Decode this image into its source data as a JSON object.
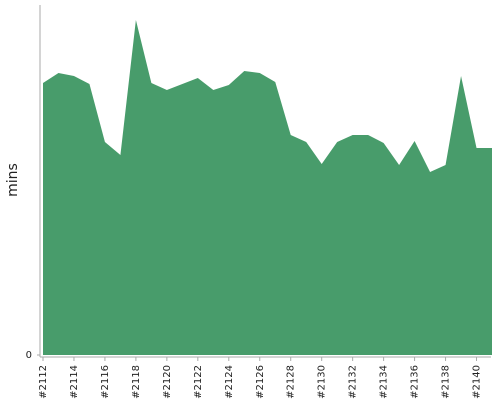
{
  "chart_data": {
    "type": "area",
    "y_label": "mins",
    "categories": [
      "#2112",
      null,
      "#2114",
      null,
      "#2116",
      null,
      "#2118",
      null,
      "#2120",
      null,
      "#2122",
      null,
      "#2124",
      null,
      "#2126",
      null,
      "#2128",
      null,
      "#2130",
      null,
      "#2132",
      null,
      "#2134",
      null,
      "#2136",
      null,
      "#2138",
      null,
      "#2140",
      null
    ],
    "values": [
      272,
      282,
      279,
      271,
      213,
      200,
      335,
      272,
      265,
      271,
      277,
      265,
      270,
      284,
      282,
      273,
      220,
      213,
      191,
      213,
      220,
      220,
      212,
      190,
      214,
      183,
      190,
      279,
      207,
      207
    ],
    "color": "#489c6b",
    "ylim": [
      0,
      350
    ],
    "yticks": [
      0
    ]
  }
}
